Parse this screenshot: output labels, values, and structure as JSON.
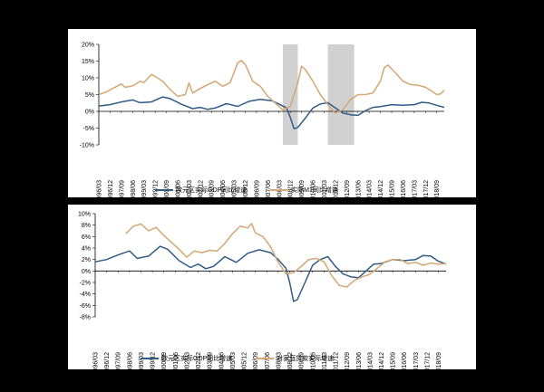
{
  "colors": {
    "gdp": "#2f5b87",
    "m1": "#d4a773",
    "loans": "#d4a773",
    "shade": "#d0d0d0"
  },
  "x_ticks": [
    "1996/03",
    "1996/12",
    "1997/09",
    "1998/06",
    "1999/03",
    "1999/12",
    "2000/09",
    "2001/06",
    "2002/03",
    "2002/12",
    "2003/09",
    "2004/06",
    "2005/03",
    "2005/12",
    "2006/09",
    "2007/06",
    "2008/03",
    "2008/12",
    "2009/09",
    "2010/06",
    "2011/03",
    "2011/12",
    "2012/09",
    "2013/06",
    "2014/03",
    "2014/12",
    "2015/09",
    "2016/06",
    "2017/03",
    "2017/12",
    "2018/09"
  ],
  "chart_data": [
    {
      "type": "line",
      "y_tick_labels": [
        "20%",
        "15%",
        "10%",
        "5%",
        "0%",
        "-5%",
        "-10%"
      ],
      "ylim": [
        -10,
        20
      ],
      "shaded_periods": [
        [
          "2008/06",
          "2009/06"
        ],
        [
          "2011/06",
          "2013/03"
        ]
      ],
      "series": [
        {
          "name": "欧元区实际GDP同比增速",
          "key": "gdp",
          "points": [
            [
              1996.0,
              1.6
            ],
            [
              1996.75,
              2.0
            ],
            [
              1997.5,
              2.8
            ],
            [
              1998.25,
              3.4
            ],
            [
              1998.75,
              2.6
            ],
            [
              1999.5,
              2.8
            ],
            [
              2000.25,
              4.3
            ],
            [
              2000.75,
              3.8
            ],
            [
              2001.5,
              2.1
            ],
            [
              2002.25,
              0.8
            ],
            [
              2002.75,
              1.2
            ],
            [
              2003.25,
              0.6
            ],
            [
              2003.75,
              1.0
            ],
            [
              2004.5,
              2.3
            ],
            [
              2005.25,
              1.5
            ],
            [
              2006.0,
              3.0
            ],
            [
              2006.75,
              3.6
            ],
            [
              2007.5,
              3.2
            ],
            [
              2008.0,
              2.2
            ],
            [
              2008.5,
              1.0
            ],
            [
              2008.75,
              -1.8
            ],
            [
              2009.0,
              -5.2
            ],
            [
              2009.25,
              -4.8
            ],
            [
              2009.75,
              -2.0
            ],
            [
              2010.25,
              1.0
            ],
            [
              2010.75,
              2.2
            ],
            [
              2011.25,
              2.6
            ],
            [
              2011.75,
              1.0
            ],
            [
              2012.25,
              -0.5
            ],
            [
              2012.75,
              -1.0
            ],
            [
              2013.25,
              -1.2
            ],
            [
              2013.75,
              0.2
            ],
            [
              2014.25,
              1.2
            ],
            [
              2014.75,
              1.4
            ],
            [
              2015.5,
              2.0
            ],
            [
              2016.25,
              1.8
            ],
            [
              2017.0,
              2.0
            ],
            [
              2017.5,
              2.7
            ],
            [
              2018.0,
              2.5
            ],
            [
              2018.5,
              1.8
            ],
            [
              2019.0,
              1.2
            ]
          ]
        },
        {
          "name": "实际M1同比增速",
          "key": "m1",
          "points": [
            [
              1996.0,
              5.0
            ],
            [
              1996.5,
              5.8
            ],
            [
              1997.0,
              7.0
            ],
            [
              1997.5,
              8.2
            ],
            [
              1997.75,
              7.2
            ],
            [
              1998.25,
              7.6
            ],
            [
              1998.75,
              9.0
            ],
            [
              1999.0,
              8.6
            ],
            [
              1999.5,
              11.0
            ],
            [
              1999.75,
              10.4
            ],
            [
              2000.25,
              9.0
            ],
            [
              2000.75,
              6.5
            ],
            [
              2001.25,
              4.5
            ],
            [
              2001.75,
              5.0
            ],
            [
              2002.0,
              8.5
            ],
            [
              2002.25,
              5.5
            ],
            [
              2002.75,
              6.8
            ],
            [
              2003.25,
              8.0
            ],
            [
              2003.75,
              9.0
            ],
            [
              2004.25,
              7.5
            ],
            [
              2004.75,
              8.6
            ],
            [
              2005.25,
              14.5
            ],
            [
              2005.5,
              15.2
            ],
            [
              2005.75,
              14.0
            ],
            [
              2006.25,
              9.0
            ],
            [
              2006.75,
              7.5
            ],
            [
              2007.25,
              4.5
            ],
            [
              2007.75,
              2.5
            ],
            [
              2008.25,
              0.5
            ],
            [
              2008.75,
              1.5
            ],
            [
              2009.25,
              8.5
            ],
            [
              2009.5,
              13.5
            ],
            [
              2009.75,
              12.5
            ],
            [
              2010.25,
              9.0
            ],
            [
              2010.75,
              5.0
            ],
            [
              2011.25,
              2.0
            ],
            [
              2011.75,
              -0.5
            ],
            [
              2012.25,
              0.5
            ],
            [
              2012.75,
              3.5
            ],
            [
              2013.25,
              5.0
            ],
            [
              2013.75,
              5.0
            ],
            [
              2014.25,
              5.5
            ],
            [
              2014.75,
              9.0
            ],
            [
              2015.0,
              13.0
            ],
            [
              2015.25,
              13.8
            ],
            [
              2015.75,
              11.5
            ],
            [
              2016.25,
              9.0
            ],
            [
              2016.75,
              8.0
            ],
            [
              2017.25,
              7.8
            ],
            [
              2017.75,
              7.2
            ],
            [
              2018.25,
              5.8
            ],
            [
              2018.5,
              5.0
            ],
            [
              2018.75,
              5.2
            ],
            [
              2019.0,
              6.3
            ]
          ]
        }
      ]
    },
    {
      "type": "line",
      "y_tick_labels": [
        "10%",
        "8%",
        "6%",
        "4%",
        "2%",
        "0%",
        "-2%",
        "-4%",
        "-6%",
        "-8%"
      ],
      "ylim": [
        -8,
        10
      ],
      "series": [
        {
          "name": "欧元区实际GDP同比增速",
          "key": "gdp",
          "points": [
            [
              1996.0,
              1.6
            ],
            [
              1996.75,
              2.0
            ],
            [
              1997.5,
              2.8
            ],
            [
              1998.25,
              3.5
            ],
            [
              1998.75,
              2.2
            ],
            [
              1999.5,
              2.6
            ],
            [
              2000.25,
              4.3
            ],
            [
              2000.75,
              3.8
            ],
            [
              2001.5,
              1.8
            ],
            [
              2002.25,
              0.6
            ],
            [
              2002.75,
              1.2
            ],
            [
              2003.25,
              0.4
            ],
            [
              2003.75,
              0.8
            ],
            [
              2004.5,
              2.5
            ],
            [
              2005.25,
              1.5
            ],
            [
              2006.0,
              3.1
            ],
            [
              2006.75,
              3.7
            ],
            [
              2007.5,
              3.2
            ],
            [
              2008.0,
              2.0
            ],
            [
              2008.5,
              0.5
            ],
            [
              2008.75,
              -2.0
            ],
            [
              2009.0,
              -5.3
            ],
            [
              2009.25,
              -5.0
            ],
            [
              2009.75,
              -2.0
            ],
            [
              2010.25,
              1.0
            ],
            [
              2010.75,
              2.0
            ],
            [
              2011.25,
              2.5
            ],
            [
              2011.75,
              0.8
            ],
            [
              2012.25,
              -0.5
            ],
            [
              2012.75,
              -1.0
            ],
            [
              2013.25,
              -1.2
            ],
            [
              2013.75,
              0.0
            ],
            [
              2014.25,
              1.2
            ],
            [
              2014.75,
              1.3
            ],
            [
              2015.5,
              2.0
            ],
            [
              2016.25,
              1.8
            ],
            [
              2017.0,
              2.0
            ],
            [
              2017.5,
              2.7
            ],
            [
              2018.0,
              2.6
            ],
            [
              2018.5,
              1.7
            ],
            [
              2019.0,
              1.2
            ]
          ]
        },
        {
          "name": "对家庭贷款实际增速",
          "key": "loans",
          "points": [
            [
              1998.0,
              6.5
            ],
            [
              1998.5,
              7.8
            ],
            [
              1999.0,
              8.2
            ],
            [
              1999.5,
              7.0
            ],
            [
              2000.0,
              7.6
            ],
            [
              2000.5,
              6.2
            ],
            [
              2001.0,
              5.0
            ],
            [
              2001.5,
              3.8
            ],
            [
              2002.0,
              2.4
            ],
            [
              2002.5,
              3.5
            ],
            [
              2003.0,
              3.2
            ],
            [
              2003.5,
              3.6
            ],
            [
              2004.0,
              3.5
            ],
            [
              2004.5,
              4.8
            ],
            [
              2005.0,
              6.5
            ],
            [
              2005.5,
              7.8
            ],
            [
              2006.0,
              7.5
            ],
            [
              2006.25,
              8.3
            ],
            [
              2006.5,
              6.6
            ],
            [
              2007.0,
              6.0
            ],
            [
              2007.5,
              4.2
            ],
            [
              2008.0,
              1.5
            ],
            [
              2008.5,
              -0.5
            ],
            [
              2009.0,
              -0.3
            ],
            [
              2009.5,
              0.8
            ],
            [
              2010.0,
              2.0
            ],
            [
              2010.5,
              2.2
            ],
            [
              2011.0,
              1.6
            ],
            [
              2011.5,
              -0.8
            ],
            [
              2012.0,
              -2.5
            ],
            [
              2012.5,
              -2.8
            ],
            [
              2013.0,
              -1.6
            ],
            [
              2013.5,
              -1.0
            ],
            [
              2014.0,
              -0.6
            ],
            [
              2014.5,
              0.5
            ],
            [
              2015.0,
              1.6
            ],
            [
              2015.5,
              2.0
            ],
            [
              2016.0,
              2.0
            ],
            [
              2016.5,
              1.3
            ],
            [
              2017.0,
              1.5
            ],
            [
              2017.5,
              1.0
            ],
            [
              2018.0,
              1.4
            ],
            [
              2018.5,
              1.2
            ],
            [
              2019.0,
              1.3
            ]
          ]
        }
      ]
    }
  ]
}
